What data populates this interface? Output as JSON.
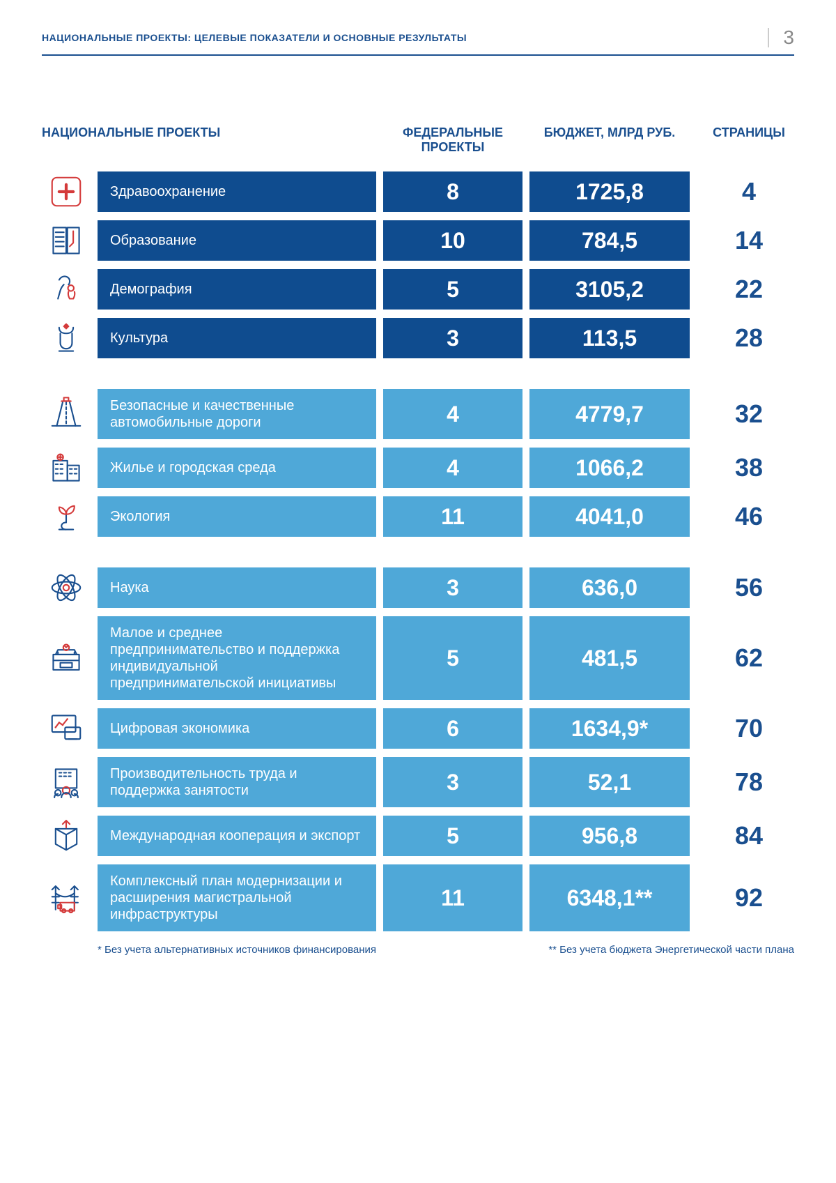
{
  "header": {
    "title": "НАЦИОНАЛЬНЫЕ ПРОЕКТЫ: ЦЕЛЕВЫЕ ПОКАЗАТЕЛИ И ОСНОВНЫЕ РЕЗУЛЬТАТЫ",
    "page_number": "3"
  },
  "columns": {
    "c1": "НАЦИОНАЛЬНЫЕ ПРОЕКТЫ",
    "c2": "ФЕДЕРАЛЬНЫЕ ПРОЕКТЫ",
    "c3": "БЮДЖЕТ, МЛРД РУБ.",
    "c4": "СТРАНИЦЫ"
  },
  "colors": {
    "dark_blue": "#0f4c8f",
    "light_blue": "#4fa8d8",
    "page_text": "#1a4f8f",
    "icon_red": "#d43a3a",
    "icon_blue": "#1a4f8f"
  },
  "projects": [
    {
      "name": "Здравоохранение",
      "federal": "8",
      "budget": "1725,8",
      "page": "4",
      "group": "dark",
      "icon": "health"
    },
    {
      "name": "Образование",
      "federal": "10",
      "budget": "784,5",
      "page": "14",
      "group": "dark",
      "icon": "education"
    },
    {
      "name": "Демография",
      "federal": "5",
      "budget": "3105,2",
      "page": "22",
      "group": "dark",
      "icon": "demography"
    },
    {
      "name": "Культура",
      "federal": "3",
      "budget": "113,5",
      "page": "28",
      "group": "dark",
      "icon": "culture",
      "gap_after": true
    },
    {
      "name": "Безопасные и качественные автомобильные дороги",
      "federal": "4",
      "budget": "4779,7",
      "page": "32",
      "group": "light",
      "icon": "roads"
    },
    {
      "name": "Жилье и городская среда",
      "federal": "4",
      "budget": "1066,2",
      "page": "38",
      "group": "light",
      "icon": "housing"
    },
    {
      "name": "Экология",
      "federal": "11",
      "budget": "4041,0",
      "page": "46",
      "group": "light",
      "icon": "ecology",
      "gap_after": true
    },
    {
      "name": "Наука",
      "federal": "3",
      "budget": "636,0",
      "page": "56",
      "group": "light",
      "icon": "science"
    },
    {
      "name": "Малое и среднее предпринимательство и поддержка индивидуальной предпринимательской инициативы",
      "federal": "5",
      "budget": "481,5",
      "page": "62",
      "group": "light",
      "icon": "business"
    },
    {
      "name": "Цифровая экономика",
      "federal": "6",
      "budget": "1634,9*",
      "page": "70",
      "group": "light",
      "icon": "digital"
    },
    {
      "name": "Производительность труда и поддержка занятости",
      "federal": "3",
      "budget": "52,1",
      "page": "78",
      "group": "light",
      "icon": "labor"
    },
    {
      "name": "Международная кооперация и экспорт",
      "federal": "5",
      "budget": "956,8",
      "page": "84",
      "group": "light",
      "icon": "export"
    },
    {
      "name": "Комплексный план модернизации и расширения магистральной инфраструктуры",
      "federal": "11",
      "budget": "6348,1**",
      "page": "92",
      "group": "light",
      "icon": "infra"
    }
  ],
  "footnotes": {
    "f1": "* Без учета альтернативных источников финансирования",
    "f2": "** Без учета бюджета Энергетической части плана"
  }
}
